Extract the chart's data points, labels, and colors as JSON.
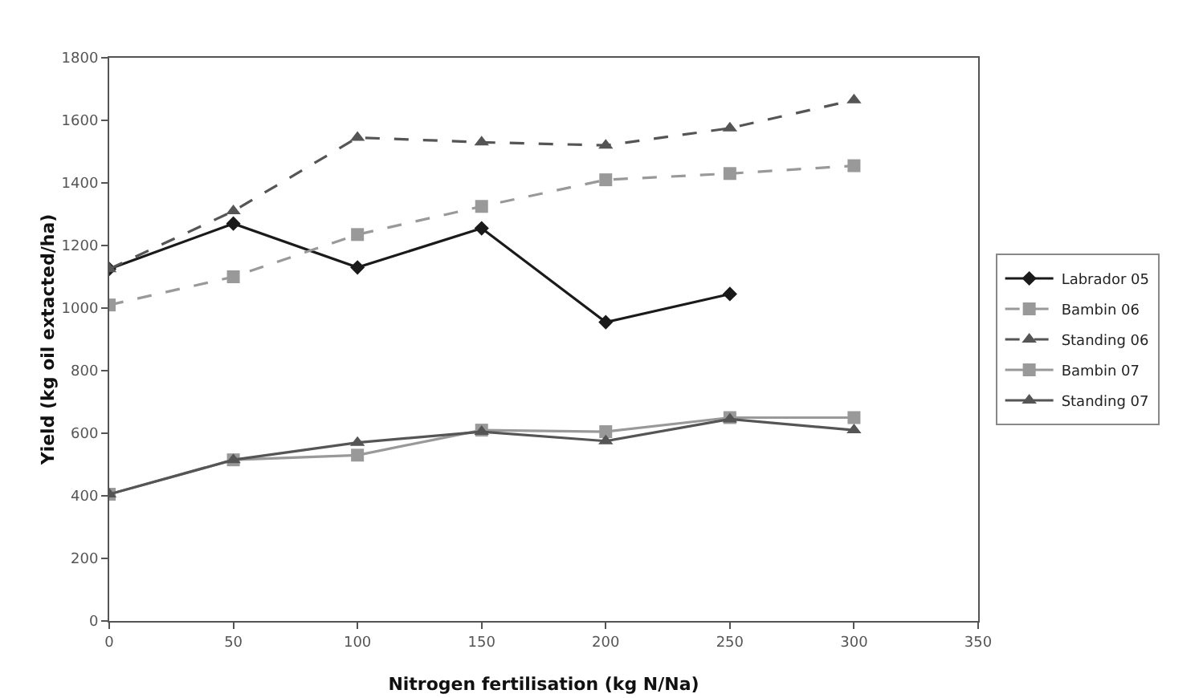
{
  "chart_data": {
    "type": "line",
    "xlabel": "Nitrogen fertilisation (kg N/Na)",
    "ylabel": "Yield (kg oil extacted/ha)",
    "x": [
      0,
      50,
      100,
      150,
      200,
      250,
      300
    ],
    "series": [
      {
        "name": "Labrador 05",
        "color": "#1a1a1a",
        "marker": "diamond",
        "line_style": "solid",
        "x": [
          0,
          50,
          100,
          150,
          200,
          250
        ],
        "values": [
          1125,
          1270,
          1130,
          1255,
          955,
          1045
        ]
      },
      {
        "name": "Bambin 06",
        "color": "#999999",
        "marker": "square",
        "line_style": "dashed",
        "values": [
          1010,
          1100,
          1235,
          1325,
          1410,
          1430,
          1455
        ]
      },
      {
        "name": "Standing 06",
        "color": "#555555",
        "marker": "triangle",
        "line_style": "dashed",
        "values": [
          1125,
          1310,
          1545,
          1530,
          1520,
          1575,
          1665
        ]
      },
      {
        "name": "Bambin 07",
        "color": "#999999",
        "marker": "square",
        "line_style": "solid",
        "values": [
          405,
          515,
          530,
          610,
          605,
          650,
          650
        ]
      },
      {
        "name": "Standing 07",
        "color": "#555555",
        "marker": "triangle",
        "line_style": "solid",
        "values": [
          405,
          515,
          570,
          605,
          575,
          645,
          610
        ]
      }
    ],
    "xlim": [
      0,
      350
    ],
    "xticks": [
      0,
      50,
      100,
      150,
      200,
      250,
      300,
      350
    ],
    "ylim": [
      0,
      1800
    ],
    "yticks": [
      0,
      200,
      400,
      600,
      800,
      1000,
      1200,
      1400,
      1600,
      1800
    ],
    "grid": false,
    "legend": "right"
  }
}
